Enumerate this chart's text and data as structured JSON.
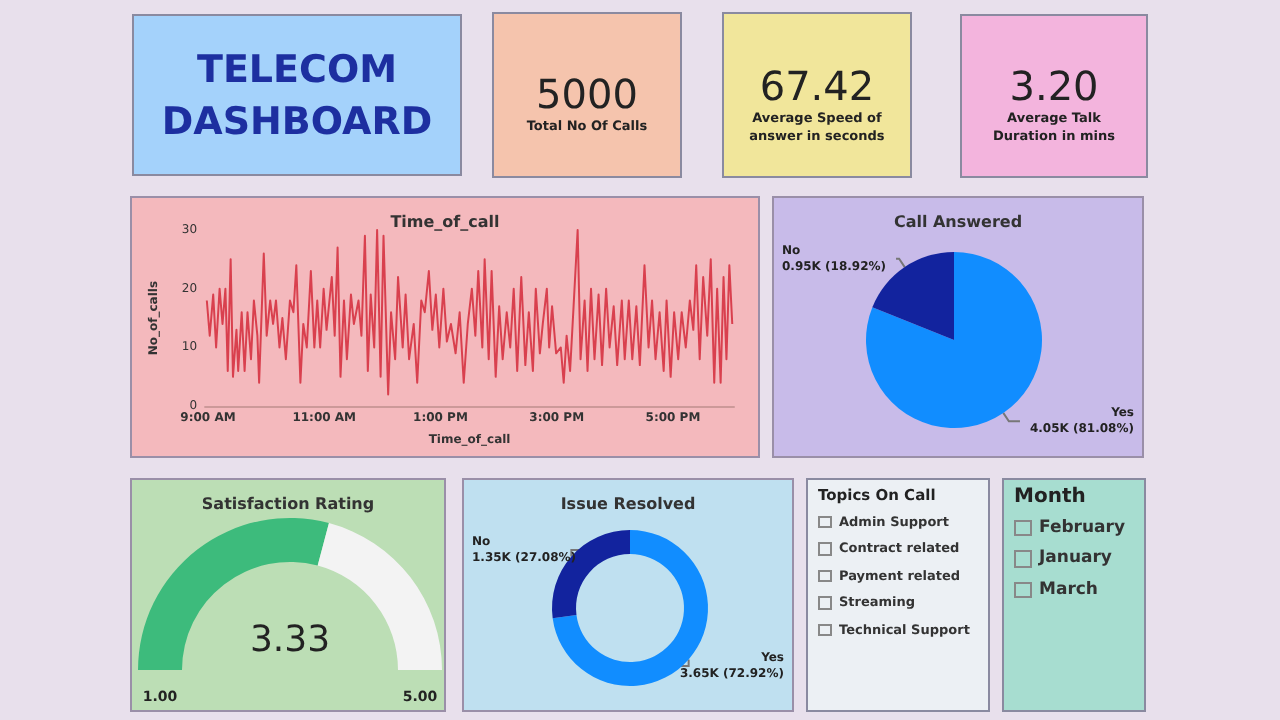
{
  "chart_data": [
    {
      "type": "other",
      "title": "TELECOM DASHBOARD"
    },
    {
      "type": "other",
      "title": "Total No Of Calls",
      "annotations": [
        "5000"
      ]
    },
    {
      "type": "other",
      "title": "Average Speed of answer in seconds",
      "annotations": [
        "67.42"
      ]
    },
    {
      "type": "other",
      "title": "Average Talk Duration in mins",
      "annotations": [
        "3.20"
      ]
    },
    {
      "type": "line",
      "title": "Time_of_call",
      "xlabel": "Time_of_call",
      "ylabel": "No_of_calls",
      "color": "#d9404e",
      "xlim": [
        8.95,
        18.05
      ],
      "xticks": [
        {
          "value": 9,
          "label": "9:00 AM"
        },
        {
          "value": 11,
          "label": "11:00 AM"
        },
        {
          "value": 13,
          "label": "1:00 PM"
        },
        {
          "value": 15,
          "label": "3:00 PM"
        },
        {
          "value": 17,
          "label": "5:00 PM"
        }
      ],
      "ylim": [
        0,
        30
      ],
      "yticks": [
        0,
        10,
        20,
        30
      ],
      "x": [
        8.98,
        9.03,
        9.09,
        9.14,
        9.2,
        9.25,
        9.3,
        9.34,
        9.39,
        9.43,
        9.49,
        9.52,
        9.58,
        9.63,
        9.68,
        9.74,
        9.79,
        9.85,
        9.88,
        9.96,
        10.01,
        10.07,
        10.12,
        10.17,
        10.23,
        10.28,
        10.34,
        10.41,
        10.47,
        10.52,
        10.59,
        10.64,
        10.7,
        10.77,
        10.83,
        10.88,
        10.93,
        10.99,
        11.04,
        11.13,
        11.18,
        11.23,
        11.28,
        11.34,
        11.39,
        11.46,
        11.51,
        11.59,
        11.64,
        11.7,
        11.75,
        11.8,
        11.86,
        11.91,
        11.97,
        12.02,
        12.1,
        12.15,
        12.22,
        12.27,
        12.35,
        12.4,
        12.46,
        12.54,
        12.6,
        12.67,
        12.73,
        12.8,
        12.86,
        12.92,
        12.98,
        13.05,
        13.11,
        13.18,
        13.26,
        13.33,
        13.4,
        13.47,
        13.54,
        13.6,
        13.65,
        13.72,
        13.76,
        13.83,
        13.88,
        13.95,
        14.01,
        14.07,
        14.14,
        14.2,
        14.26,
        14.32,
        14.39,
        14.46,
        14.52,
        14.59,
        14.64,
        14.71,
        14.76,
        14.83,
        14.87,
        14.92,
        14.99,
        15.07,
        15.12,
        15.17,
        15.23,
        15.29,
        15.36,
        15.41,
        15.48,
        15.53,
        15.59,
        15.65,
        15.72,
        15.78,
        15.85,
        15.91,
        15.98,
        16.04,
        16.12,
        16.17,
        16.24,
        16.3,
        16.37,
        16.43,
        16.51,
        16.58,
        16.64,
        16.7,
        16.77,
        16.84,
        16.89,
        16.96,
        17.02,
        17.09,
        17.15,
        17.22,
        17.29,
        17.35,
        17.4,
        17.46,
        17.52,
        17.59,
        17.65,
        17.71,
        17.76,
        17.82,
        17.87,
        17.92,
        17.97,
        18.02
      ],
      "values": [
        18,
        12,
        19,
        10,
        20,
        14,
        20,
        6,
        25,
        5,
        13,
        6,
        16,
        6,
        16,
        8,
        18,
        12,
        4,
        26,
        12,
        18,
        14,
        18,
        10,
        15,
        8,
        18,
        16,
        24,
        4,
        14,
        10,
        23,
        10,
        18,
        10,
        20,
        13,
        22,
        12,
        27,
        5,
        18,
        8,
        19,
        14,
        18,
        12,
        29,
        6,
        19,
        10,
        30,
        5,
        29,
        2,
        16,
        8,
        22,
        10,
        19,
        8,
        14,
        4,
        18,
        16,
        23,
        13,
        19,
        10,
        20,
        11,
        14,
        9,
        16,
        4,
        14,
        20,
        12,
        23,
        10,
        25,
        8,
        23,
        5,
        17,
        8,
        16,
        10,
        20,
        6,
        22,
        7,
        16,
        6,
        20,
        9,
        14,
        20,
        10,
        17,
        9,
        10,
        4,
        12,
        6,
        17,
        30,
        8,
        18,
        6,
        20,
        8,
        19,
        7,
        20,
        10,
        17,
        7,
        18,
        8,
        18,
        8,
        17,
        7,
        24,
        10,
        18,
        8,
        16,
        6,
        18,
        5,
        16,
        8,
        16,
        10,
        18,
        13,
        24,
        8,
        22,
        12,
        25,
        4,
        20,
        4,
        22,
        8,
        24,
        14
      ]
    },
    {
      "type": "pie",
      "title": "Call Answered",
      "categories": [
        "Yes",
        "No"
      ],
      "values": [
        81.08,
        18.92
      ],
      "colors": [
        "#118dff",
        "#12239e"
      ],
      "value_labels": [
        "4.05K (81.08%)",
        "0.95K (18.92%)"
      ]
    },
    {
      "type": "donut",
      "title": "Satisfaction Rating",
      "values": [
        58.25,
        41.75
      ],
      "colors": [
        "#3dbb7c",
        "#f3f3f3"
      ],
      "annotations": [
        "3.33",
        "1.00",
        "5.00"
      ]
    },
    {
      "type": "donut",
      "title": "Issue Resolved",
      "categories": [
        "Yes",
        "No"
      ],
      "values": [
        72.92,
        27.08
      ],
      "colors": [
        "#118dff",
        "#12239e"
      ],
      "value_labels": [
        "3.65K (72.92%)",
        "1.35K (27.08%)"
      ]
    },
    {
      "type": "other",
      "title": "Topics On Call",
      "categories": [
        "Admin Support",
        "Contract related",
        "Payment related",
        "Streaming",
        "Technical Support"
      ]
    },
    {
      "type": "other",
      "title": "Month",
      "categories": [
        "February",
        "January",
        "March"
      ]
    }
  ]
}
